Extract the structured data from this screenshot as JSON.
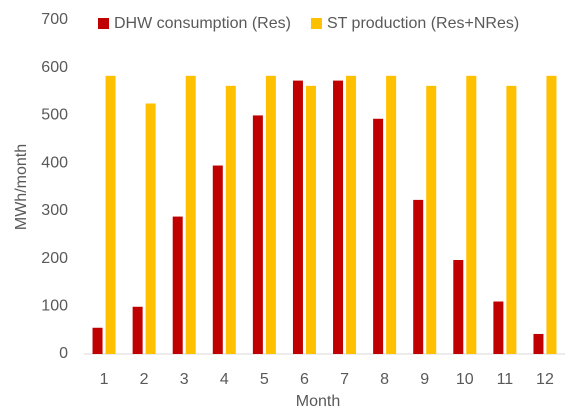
{
  "chart_data": {
    "type": "bar",
    "categories": [
      "1",
      "2",
      "3",
      "4",
      "5",
      "6",
      "7",
      "8",
      "9",
      "10",
      "11",
      "12"
    ],
    "series": [
      {
        "name": "DHW consumption (Res)",
        "color": "#c00000",
        "values": [
          55,
          99,
          288,
          395,
          500,
          573,
          573,
          493,
          323,
          197,
          110,
          42
        ]
      },
      {
        "name": "ST production (Res+NRes)",
        "color": "#ffc000",
        "values": [
          583,
          525,
          583,
          562,
          583,
          562,
          583,
          583,
          562,
          583,
          562,
          583
        ]
      }
    ],
    "ylabel": "MWh/month",
    "xlabel": "Month",
    "ylim": [
      0,
      700
    ],
    "yticks": [
      0,
      100,
      200,
      300,
      400,
      500,
      600,
      700
    ],
    "grid": false,
    "legend": "top"
  }
}
